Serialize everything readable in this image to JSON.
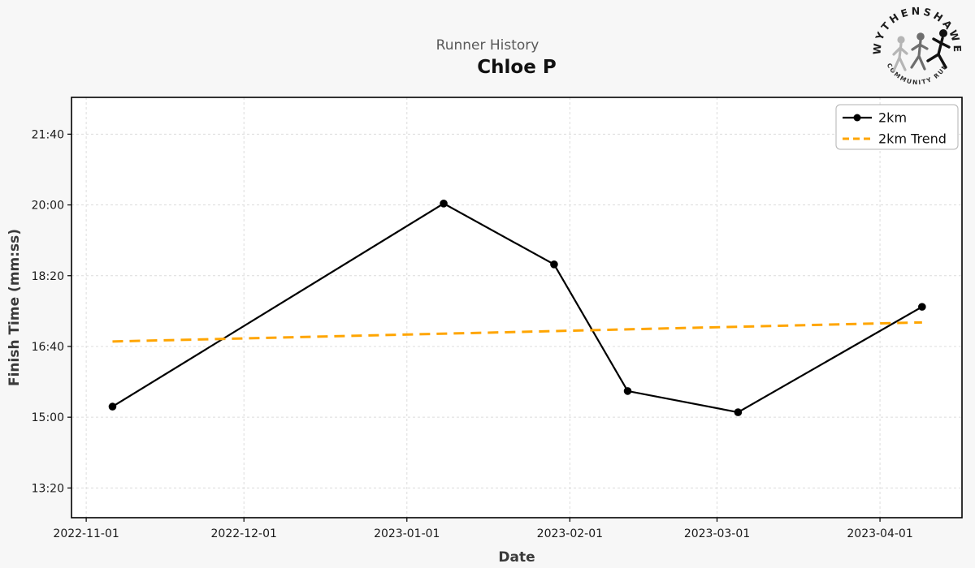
{
  "header": {
    "subtitle": "Runner History",
    "title": "Chloe P"
  },
  "logo": {
    "top_text": "WYTHENSHAWE",
    "bottom_text": "COMMUNITY RUN"
  },
  "chart_data": {
    "type": "line",
    "title": "Runner History",
    "subtitle": "Chloe P",
    "xlabel": "Date",
    "ylabel": "Finish Time (mm:ss)",
    "grid": true,
    "background_color": "#f7f7f7",
    "plot_background_color": "#ffffff",
    "gridline_color": "#dcdcdc",
    "x_axis": {
      "origin": "2022-11-01",
      "range_days": [
        -2.8,
        166.6
      ],
      "ticks": [
        {
          "date": "2022-11-01",
          "label": "2022-11-01"
        },
        {
          "date": "2022-12-01",
          "label": "2022-12-01"
        },
        {
          "date": "2023-01-01",
          "label": "2023-01-01"
        },
        {
          "date": "2023-02-01",
          "label": "2023-02-01"
        },
        {
          "date": "2023-03-01",
          "label": "2023-03-01"
        },
        {
          "date": "2023-04-01",
          "label": "2023-04-01"
        }
      ]
    },
    "y_axis": {
      "unit": "seconds",
      "range_seconds": [
        758,
        1352
      ],
      "ticks": [
        {
          "seconds": 1300,
          "label": "21:40"
        },
        {
          "seconds": 1200,
          "label": "20:00"
        },
        {
          "seconds": 1100,
          "label": "18:20"
        },
        {
          "seconds": 1000,
          "label": "16:40"
        },
        {
          "seconds": 900,
          "label": "15:00"
        },
        {
          "seconds": 800,
          "label": "13:20"
        }
      ]
    },
    "legend": {
      "position": "upper-right",
      "entries": [
        "2km",
        "2km Trend"
      ]
    },
    "series": [
      {
        "name": "2km",
        "color": "#000000",
        "style": "solid",
        "marker": "circle",
        "points": [
          {
            "date": "2022-11-06",
            "time": "15:15",
            "seconds": 915
          },
          {
            "date": "2023-01-08",
            "time": "20:02",
            "seconds": 1202
          },
          {
            "date": "2023-01-29",
            "time": "18:36",
            "seconds": 1116
          },
          {
            "date": "2023-02-12",
            "time": "15:37",
            "seconds": 937
          },
          {
            "date": "2023-03-05",
            "time": "15:07",
            "seconds": 907
          },
          {
            "date": "2023-04-09",
            "time": "17:36",
            "seconds": 1056
          }
        ]
      },
      {
        "name": "2km Trend",
        "color": "#ffa500",
        "style": "dashed",
        "marker": "none",
        "points": [
          {
            "date": "2022-11-06",
            "time": "16:47",
            "seconds": 1007
          },
          {
            "date": "2023-04-09",
            "time": "17:14",
            "seconds": 1034
          }
        ]
      }
    ]
  }
}
